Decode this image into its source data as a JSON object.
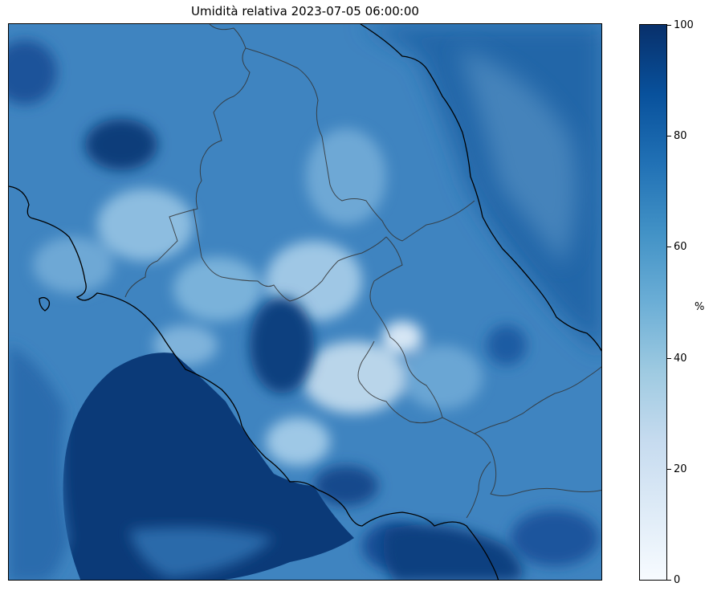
{
  "title": "Umidità relativa 2023-07-05 06:00:00",
  "colorbar": {
    "unit": "%",
    "ticks": [
      "0",
      "20",
      "40",
      "60",
      "80",
      "100"
    ],
    "range": [
      0,
      100
    ],
    "colormap": "Blues"
  },
  "colors": {
    "land_mid": "#4f8fc6",
    "sea_dark": "#0b3a78",
    "light_patch": "#b9d5ea",
    "coastline": "#000000",
    "borders": "#333333"
  }
}
